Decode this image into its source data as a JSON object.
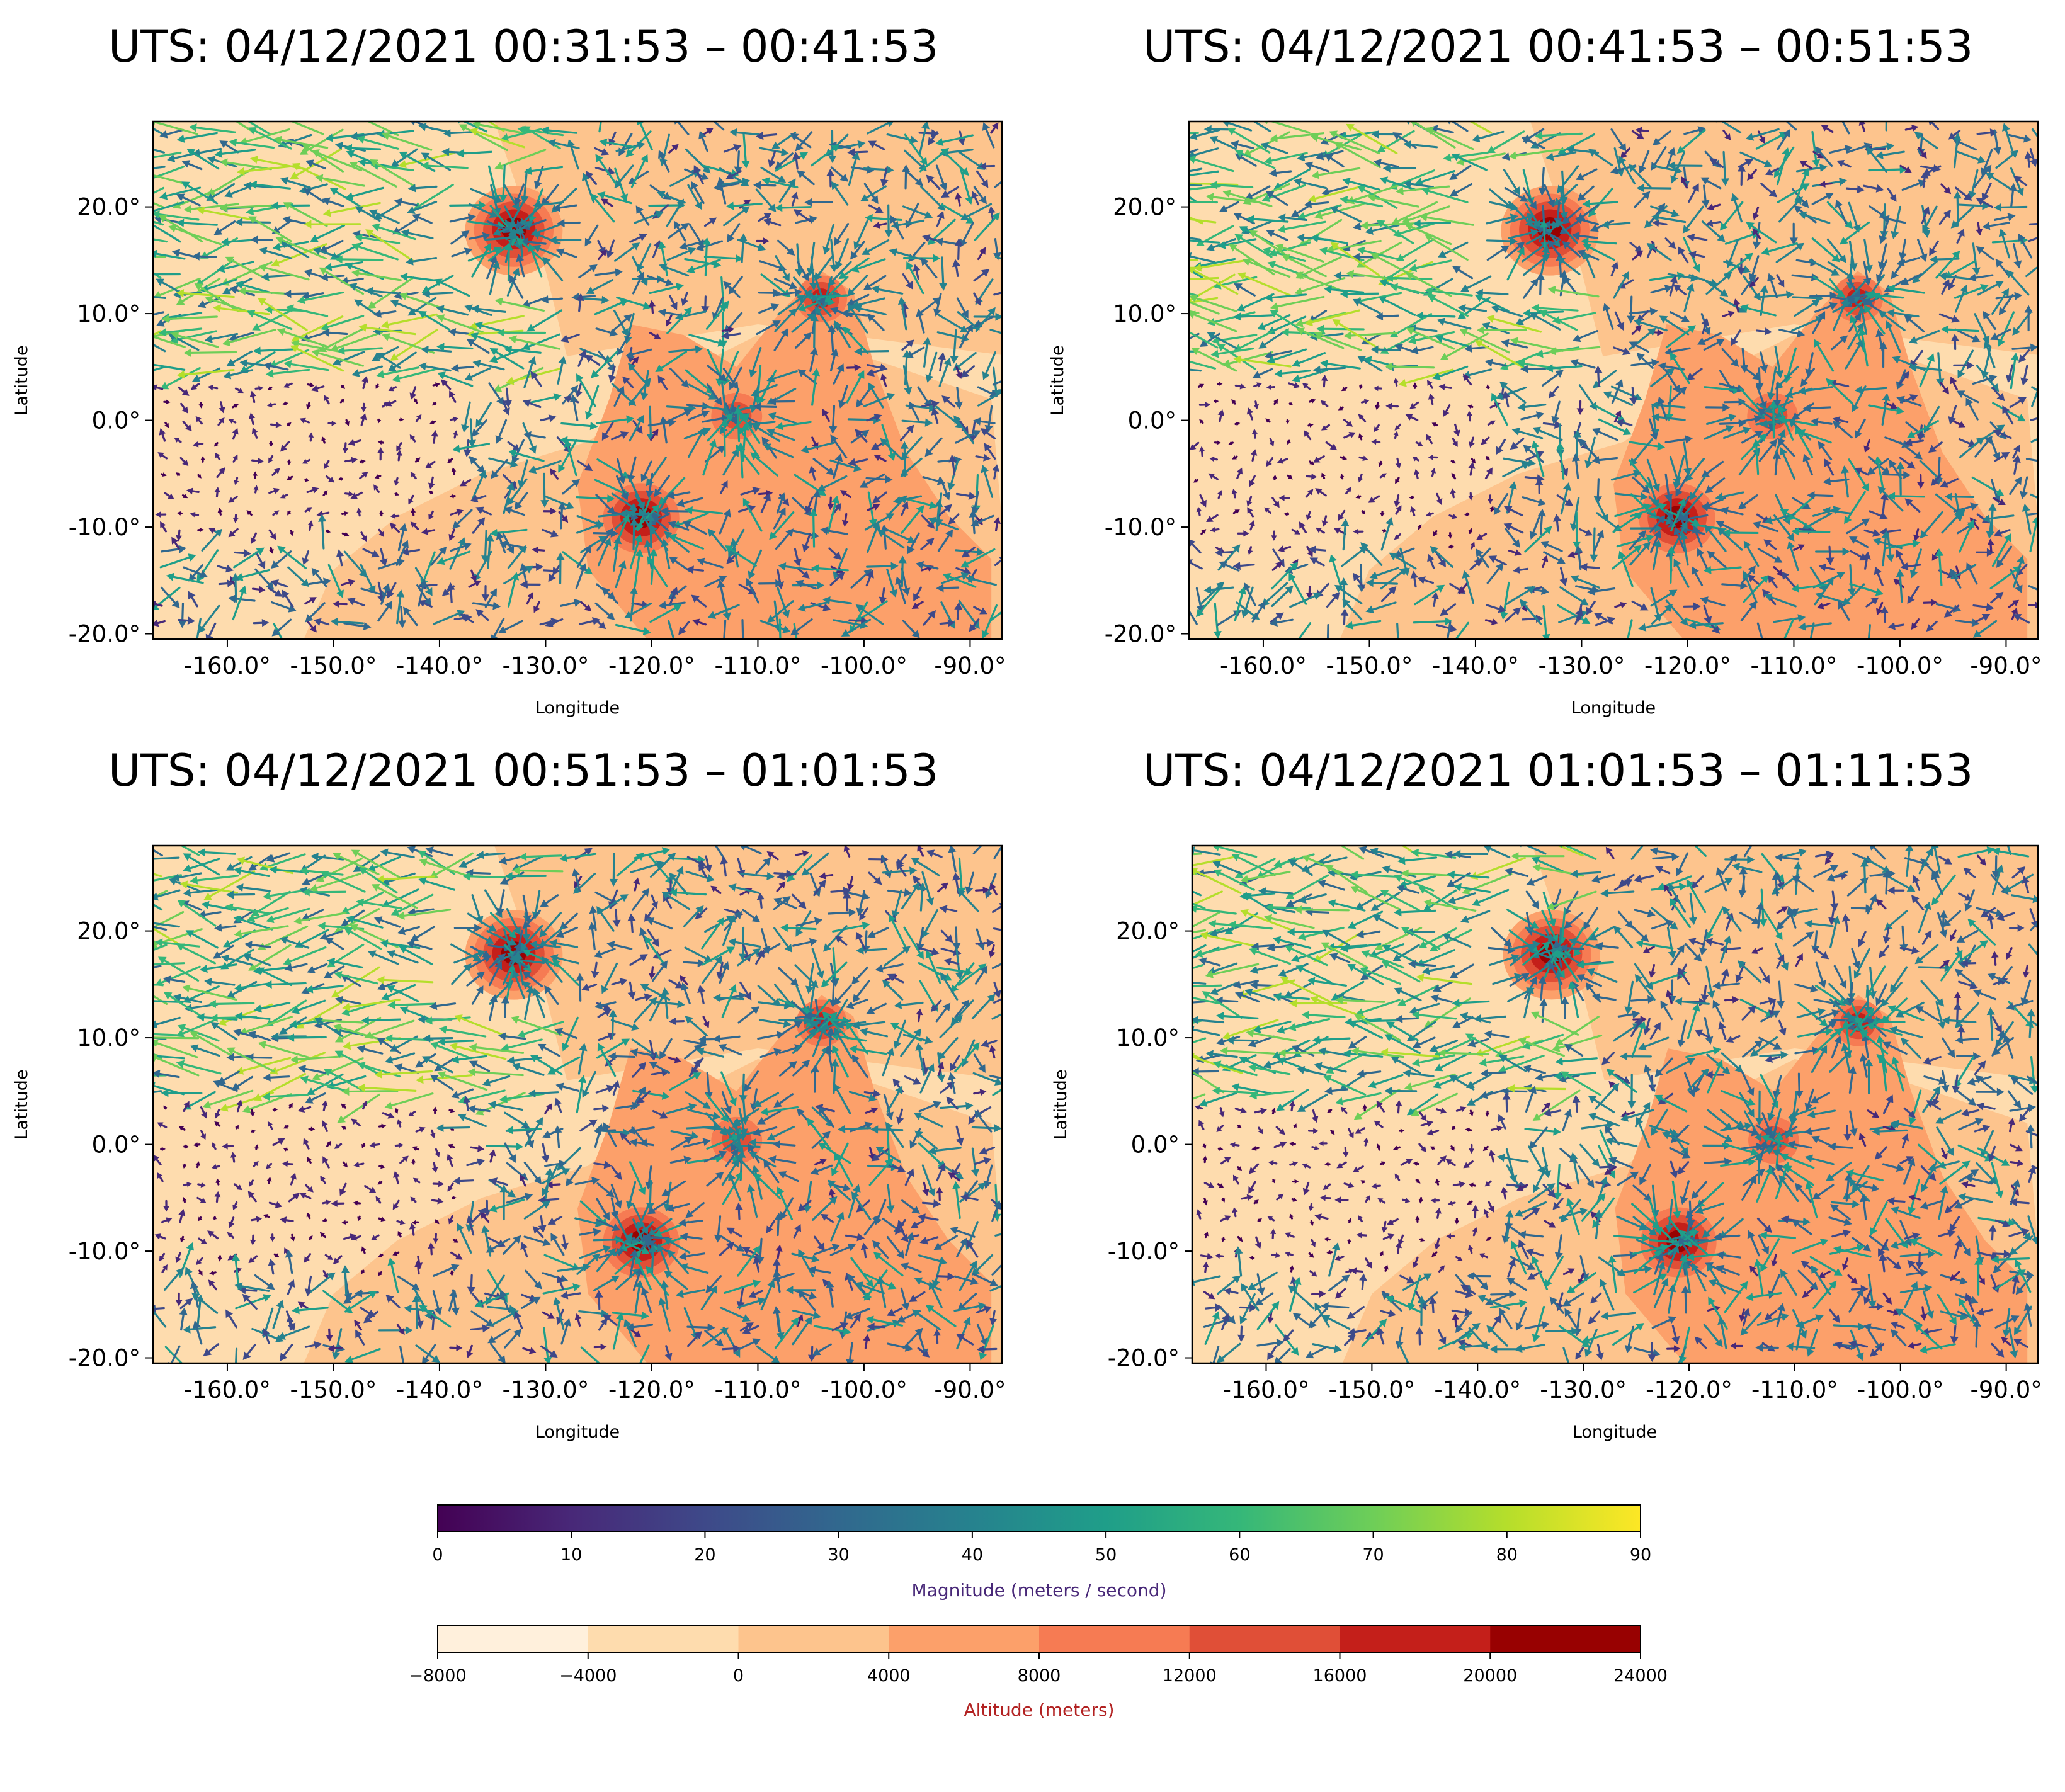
{
  "panels": [
    {
      "title": "UTS: 04/12/2021 00:31:53 – 00:41:53",
      "seed": 11
    },
    {
      "title": "UTS: 04/12/2021 00:41:53 – 00:51:53",
      "seed": 23
    },
    {
      "title": "UTS: 04/12/2021 00:51:53 – 01:01:53",
      "seed": 37
    },
    {
      "title": "UTS: 04/12/2021 01:01:53 – 01:11:53",
      "seed": 51
    }
  ],
  "chart_data": {
    "type": "contour map with wind vector field",
    "xlabel": "Longitude",
    "ylabel": "Latitude",
    "xlim": [
      -167,
      -87
    ],
    "ylim": [
      -20.5,
      28
    ],
    "x_ticks": [
      -160,
      -150,
      -140,
      -130,
      -120,
      -110,
      -100,
      -90
    ],
    "x_tick_labels": [
      "-160.0°",
      "-150.0°",
      "-140.0°",
      "-130.0°",
      "-120.0°",
      "-110.0°",
      "-100.0°",
      "-90.0°"
    ],
    "y_ticks": [
      -20,
      -10,
      0,
      10,
      20
    ],
    "y_tick_labels": [
      "-20.0°",
      "-10.0°",
      "0.0°",
      "10.0°",
      "20.0°"
    ],
    "features": [
      {
        "lon": -133,
        "lat": 18,
        "peak_altitude": 22000
      },
      {
        "lon": -104,
        "lat": 11.5,
        "peak_altitude": 18000
      },
      {
        "lon": -112,
        "lat": 0.5,
        "peak_altitude": 14000
      },
      {
        "lon": -121,
        "lat": -9,
        "peak_altitude": 21000
      }
    ],
    "magnitude_colorbar": {
      "label": "Magnitude (meters / second)",
      "label_color": "#482878",
      "min": 0,
      "max": 90,
      "ticks": [
        "0",
        "10",
        "20",
        "30",
        "40",
        "50",
        "60",
        "70",
        "80",
        "90"
      ],
      "colormap": [
        "#440154",
        "#482878",
        "#3e4989",
        "#31688e",
        "#26828e",
        "#1f9e89",
        "#35b779",
        "#6ece58",
        "#b5de2b",
        "#fde725"
      ]
    },
    "altitude_colorbar": {
      "label": "Altitude (meters)",
      "label_color": "#b22222",
      "min": -8000,
      "max": 24000,
      "ticks": [
        "−8000",
        "−4000",
        "0",
        "4000",
        "8000",
        "12000",
        "16000",
        "20000",
        "24000"
      ],
      "levels": [
        -8000,
        -4000,
        0,
        4000,
        8000,
        12000,
        16000,
        20000,
        24000
      ],
      "colors": [
        "#fff0dc",
        "#fedcae",
        "#fdc48d",
        "#fca06a",
        "#f67b53",
        "#e04f37",
        "#c41f1a",
        "#980101"
      ]
    }
  }
}
